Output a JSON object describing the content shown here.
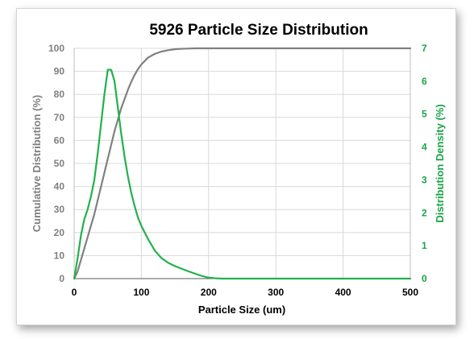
{
  "chart_data": {
    "type": "line",
    "title": "5926 Particle Size Distribution",
    "xlabel": "Particle Size (um)",
    "ylabel_left": "Cumulative Distribution (%)",
    "ylabel_right": "Distribution Density (%)",
    "xlim": [
      0,
      500
    ],
    "ylim_left": [
      0,
      100
    ],
    "ylim_right": [
      0,
      7
    ],
    "x_ticks": [
      "0",
      "100",
      "200",
      "300",
      "400",
      "500"
    ],
    "y_left_ticks": [
      "0",
      "10",
      "20",
      "30",
      "40",
      "50",
      "60",
      "70",
      "80",
      "90",
      "100"
    ],
    "y_right_ticks": [
      "0",
      "1",
      "2",
      "3",
      "4",
      "5",
      "6",
      "7"
    ],
    "grid": true,
    "legend": "none",
    "colors": {
      "cumulative": "#808080",
      "density": "#22b14c",
      "left_axis_text": "#7f7f7f",
      "right_axis_text": "#1aa34a",
      "grid": "#d9d9d9"
    },
    "series": [
      {
        "axis": "left",
        "x": [
          0,
          5,
          10,
          15,
          20,
          25,
          30,
          35,
          40,
          45,
          50,
          55,
          60,
          65,
          70,
          75,
          80,
          85,
          90,
          95,
          100,
          110,
          120,
          130,
          140,
          150,
          160,
          170,
          180,
          190,
          200,
          250,
          300,
          350,
          400,
          450,
          500
        ],
        "values": [
          0,
          3,
          8,
          13,
          18,
          23,
          28,
          34,
          40,
          46,
          52,
          58,
          64,
          69,
          74,
          78,
          82,
          85.5,
          88.5,
          91,
          93,
          96,
          97.6,
          98.6,
          99.2,
          99.6,
          99.8,
          99.9,
          100,
          100,
          100,
          100,
          100,
          100,
          100,
          100,
          100
        ]
      },
      {
        "axis": "right",
        "x": [
          0,
          5,
          10,
          15,
          20,
          25,
          30,
          35,
          40,
          45,
          50,
          55,
          60,
          65,
          70,
          75,
          80,
          85,
          90,
          95,
          100,
          110,
          120,
          130,
          140,
          150,
          160,
          170,
          180,
          190,
          200,
          210,
          220,
          250,
          300,
          400,
          500
        ],
        "values": [
          0,
          0.6,
          1.3,
          1.8,
          2.1,
          2.5,
          3.0,
          3.8,
          4.7,
          5.6,
          6.35,
          6.35,
          6.0,
          5.2,
          4.4,
          3.7,
          3.1,
          2.6,
          2.2,
          1.85,
          1.6,
          1.2,
          0.85,
          0.62,
          0.48,
          0.38,
          0.3,
          0.22,
          0.15,
          0.08,
          0.03,
          0.01,
          0,
          0,
          0,
          0,
          0
        ]
      }
    ]
  }
}
